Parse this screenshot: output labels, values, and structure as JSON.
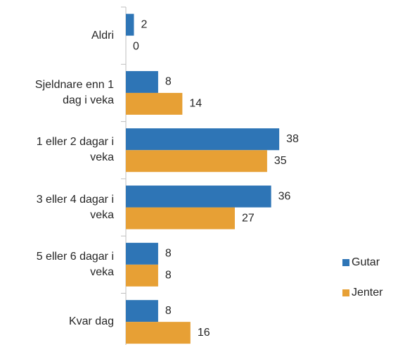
{
  "chart_data": {
    "type": "hbar",
    "categories": [
      "Aldri",
      "Sjeldnare enn 1\ndag i veka",
      "1 eller 2 dagar i\nveka",
      "3 eller 4 dagar i\nveka",
      "5 eller 6 dagar i\nveka",
      "Kvar dag"
    ],
    "series": [
      {
        "name": "Gutar",
        "color": "#2e75b6",
        "values": [
          2,
          8,
          38,
          36,
          8,
          8
        ]
      },
      {
        "name": "Jenter",
        "color": "#e7a035",
        "values": [
          0,
          14,
          35,
          27,
          8,
          16
        ]
      }
    ],
    "xlim": [
      0,
      40
    ],
    "legend": "right"
  }
}
